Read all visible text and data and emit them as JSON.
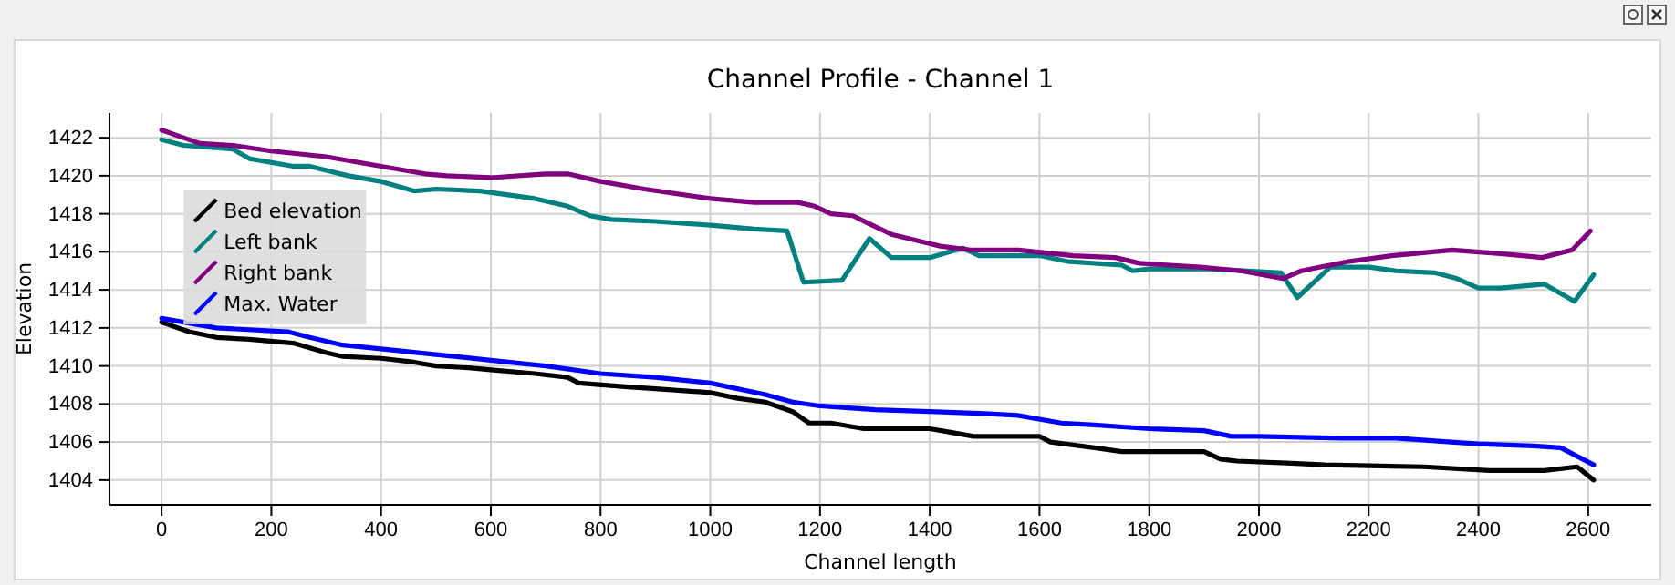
{
  "chart_data": {
    "type": "line",
    "title": "Channel Profile - Channel 1",
    "xlabel": "Channel length",
    "ylabel": "Elevation",
    "xlim": [
      -95,
      2715
    ],
    "ylim": [
      1402.7,
      1423.3
    ],
    "xticks": [
      0,
      200,
      400,
      600,
      800,
      1000,
      1200,
      1400,
      1600,
      1800,
      2000,
      2200,
      2400,
      2600
    ],
    "yticks": [
      1404,
      1406,
      1408,
      1410,
      1412,
      1414,
      1416,
      1418,
      1420,
      1422
    ],
    "grid": true,
    "legend": "top left",
    "marker": "none",
    "line_style": "solid",
    "series": [
      {
        "name": "Bed elevation",
        "color": "#000000",
        "x": [
          0,
          50,
          100,
          160,
          240,
          300,
          330,
          400,
          460,
          500,
          560,
          600,
          680,
          740,
          760,
          850,
          900,
          1000,
          1050,
          1100,
          1150,
          1180,
          1220,
          1280,
          1400,
          1440,
          1480,
          1600,
          1620,
          1700,
          1750,
          1900,
          1930,
          1960,
          2050,
          2120,
          2300,
          2420,
          2520,
          2580,
          2610
        ],
        "values": [
          1412.3,
          1411.8,
          1411.5,
          1411.4,
          1411.2,
          1410.7,
          1410.5,
          1410.4,
          1410.2,
          1410,
          1409.9,
          1409.8,
          1409.6,
          1409.4,
          1409.1,
          1408.9,
          1408.8,
          1408.6,
          1408.3,
          1408.1,
          1407.6,
          1407,
          1407,
          1406.7,
          1406.7,
          1406.5,
          1406.3,
          1406.3,
          1406,
          1405.7,
          1405.5,
          1405.5,
          1405.1,
          1405,
          1404.9,
          1404.8,
          1404.7,
          1404.5,
          1404.5,
          1404.7,
          1404
        ]
      },
      {
        "name": "Left bank",
        "color": "#008080",
        "x": [
          0,
          40,
          130,
          160,
          240,
          270,
          340,
          400,
          460,
          500,
          580,
          680,
          740,
          780,
          820,
          900,
          1000,
          1080,
          1140,
          1170,
          1240,
          1290,
          1330,
          1400,
          1460,
          1490,
          1600,
          1650,
          1750,
          1770,
          1800,
          1912,
          2040,
          2070,
          2130,
          2200,
          2250,
          2320,
          2360,
          2400,
          2440,
          2520,
          2575,
          2610
        ],
        "values": [
          1421.9,
          1421.6,
          1421.4,
          1420.9,
          1420.5,
          1420.5,
          1420,
          1419.7,
          1419.2,
          1419.3,
          1419.2,
          1418.8,
          1418.4,
          1417.9,
          1417.7,
          1417.6,
          1417.4,
          1417.2,
          1417.1,
          1414.4,
          1414.5,
          1416.7,
          1415.7,
          1415.7,
          1416.2,
          1415.8,
          1415.8,
          1415.5,
          1415.3,
          1415,
          1415.1,
          1415.1,
          1414.9,
          1413.6,
          1415.2,
          1415.2,
          1415,
          1414.9,
          1414.6,
          1414.1,
          1414.1,
          1414.3,
          1413.4,
          1414.8
        ]
      },
      {
        "name": "Right bank",
        "color": "#800080",
        "x": [
          0,
          40,
          70,
          130,
          200,
          300,
          400,
          480,
          520,
          600,
          700,
          740,
          800,
          880,
          1000,
          1080,
          1160,
          1190,
          1220,
          1260,
          1288,
          1332,
          1419,
          1474,
          1562,
          1661,
          1738,
          1782,
          1892,
          1967,
          2044,
          2077,
          2165,
          2242,
          2352,
          2440,
          2516,
          2571,
          2604
        ],
        "values": [
          1422.4,
          1422,
          1421.7,
          1421.6,
          1421.3,
          1421,
          1420.5,
          1420.1,
          1420,
          1419.9,
          1420.1,
          1420.1,
          1419.7,
          1419.3,
          1418.8,
          1418.6,
          1418.6,
          1418.4,
          1418,
          1417.9,
          1417.5,
          1416.9,
          1416.3,
          1416.1,
          1416.1,
          1415.8,
          1415.7,
          1415.4,
          1415.2,
          1415,
          1414.6,
          1415,
          1415.5,
          1415.8,
          1416.1,
          1415.9,
          1415.7,
          1416.1,
          1417.1
        ]
      },
      {
        "name": "Max. Water",
        "color": "#0000ff",
        "x": [
          0,
          100,
          230,
          270,
          330,
          400,
          500,
          600,
          700,
          800,
          900,
          1000,
          1100,
          1150,
          1200,
          1300,
          1400,
          1500,
          1560,
          1640,
          1700,
          1800,
          1900,
          1950,
          2000,
          2150,
          2250,
          2350,
          2400,
          2500,
          2550,
          2610
        ],
        "values": [
          1412.5,
          1412,
          1411.8,
          1411.5,
          1411.1,
          1410.9,
          1410.6,
          1410.3,
          1410,
          1409.6,
          1409.4,
          1409.1,
          1408.5,
          1408.1,
          1407.9,
          1407.7,
          1407.6,
          1407.5,
          1407.4,
          1407,
          1406.9,
          1406.7,
          1406.6,
          1406.3,
          1406.3,
          1406.2,
          1406.2,
          1406,
          1405.9,
          1405.8,
          1405.7,
          1404.8
        ]
      }
    ]
  }
}
